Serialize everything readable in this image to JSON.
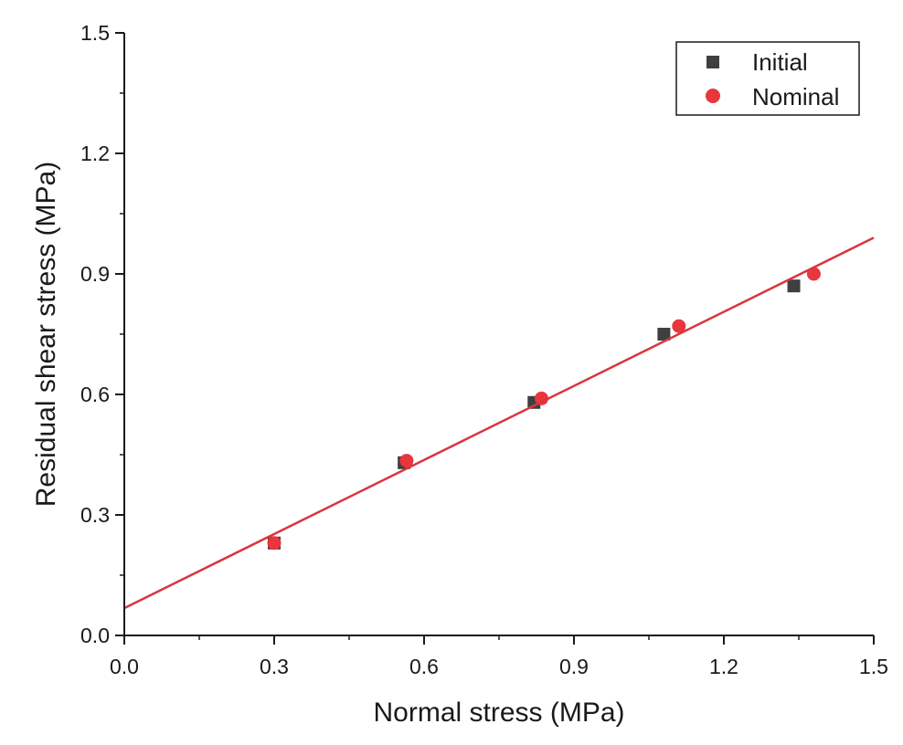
{
  "chart_data": {
    "type": "scatter",
    "title": "",
    "xlabel": "Normal stress (MPa)",
    "ylabel": "Residual shear stress (MPa)",
    "xlim": [
      0.0,
      1.5
    ],
    "ylim": [
      0.0,
      1.5
    ],
    "xticks": [
      "0.0",
      "0.3",
      "0.6",
      "0.9",
      "1.2",
      "1.5"
    ],
    "yticks": [
      "0.0",
      "0.3",
      "0.6",
      "0.9",
      "1.2",
      "1.5"
    ],
    "grid": false,
    "legend_position": "top-right",
    "series": [
      {
        "name": "Initial",
        "marker": "square",
        "color": "#3f3f3f",
        "x": [
          0.3,
          0.56,
          0.82,
          1.08,
          1.34
        ],
        "y": [
          0.23,
          0.43,
          0.58,
          0.75,
          0.87
        ]
      },
      {
        "name": "Nominal",
        "marker": "circle",
        "color": "#e8363d",
        "x": [
          0.3,
          0.565,
          0.835,
          1.11,
          1.38
        ],
        "y": [
          0.23,
          0.435,
          0.59,
          0.77,
          0.9
        ]
      }
    ],
    "fit_line": {
      "color": "#d9363d",
      "x": [
        0.0,
        1.5
      ],
      "y": [
        0.068,
        0.99
      ]
    }
  }
}
